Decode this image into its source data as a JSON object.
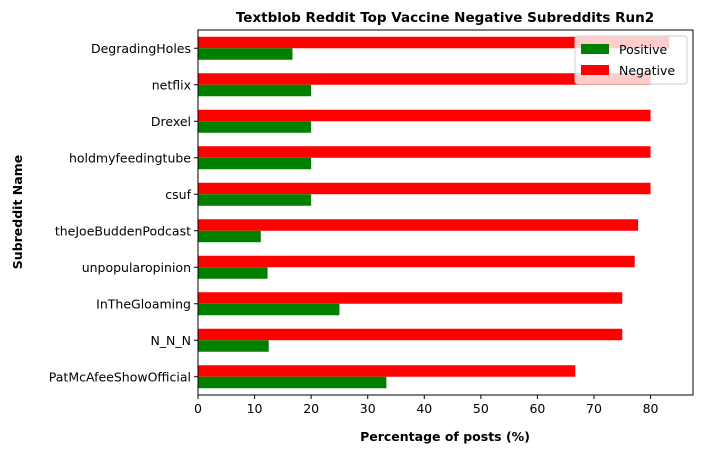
{
  "chart_data": {
    "type": "bar",
    "orientation": "horizontal",
    "title": "Textblob Reddit Top Vaccine Negative Subreddits Run2",
    "xlabel": "Percentage of posts (%)",
    "ylabel": "Subreddit Name",
    "xlim": [
      0,
      87.5
    ],
    "xticks": [
      0,
      10,
      20,
      30,
      40,
      50,
      60,
      70,
      80
    ],
    "grid": false,
    "legend_position": "top-right",
    "categories": [
      "DegradingHoles",
      "netflix",
      "Drexel",
      "holdmyfeedingtube",
      "csuf",
      "theJoeBuddenPodcast",
      "unpopularopinion",
      "InTheGloaming",
      "N_N_N",
      "PatMcAfeeShowOfficial"
    ],
    "series": [
      {
        "name": "Positive",
        "color": "#008000",
        "values": [
          16.7,
          20,
          20,
          20,
          20,
          11.1,
          12.3,
          25,
          12.5,
          33.3
        ]
      },
      {
        "name": "Negative",
        "color": "#ff0000",
        "values": [
          83.3,
          80,
          80,
          80,
          80,
          77.8,
          77.2,
          75,
          75,
          66.7
        ]
      }
    ]
  }
}
